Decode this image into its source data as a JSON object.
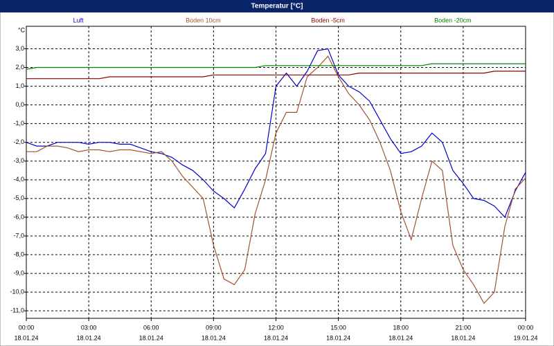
{
  "chart_data": {
    "type": "line",
    "title": "Temperatur [°C]",
    "unit": "°C",
    "x": [
      0,
      0.5,
      1,
      1.5,
      2,
      2.5,
      3,
      3.5,
      4,
      4.5,
      5,
      5.5,
      6,
      6.5,
      7,
      7.5,
      8,
      8.5,
      9,
      9.5,
      10,
      10.5,
      11,
      11.5,
      12,
      12.5,
      13,
      13.5,
      14,
      14.5,
      15,
      15.5,
      16,
      16.5,
      17,
      17.5,
      18,
      18.5,
      19,
      19.5,
      20,
      20.5,
      21,
      21.5,
      22,
      22.5,
      23,
      23.5,
      24
    ],
    "series": [
      {
        "name": "Luft",
        "color": "#0000cc",
        "values": [
          -2.0,
          -2.2,
          -2.2,
          -2.0,
          -2.0,
          -2.0,
          -2.1,
          -2.0,
          -2.0,
          -2.1,
          -2.1,
          -2.3,
          -2.5,
          -2.6,
          -2.8,
          -3.2,
          -3.5,
          -4.0,
          -4.6,
          -5.0,
          -5.5,
          -4.5,
          -3.4,
          -2.6,
          1.0,
          1.7,
          1.0,
          1.8,
          2.9,
          3.0,
          1.6,
          1.0,
          0.7,
          0.2,
          -0.8,
          -1.8,
          -2.6,
          -2.5,
          -2.2,
          -1.5,
          -2.0,
          -3.5,
          -4.2,
          -5.0,
          -5.1,
          -5.4,
          -6.0,
          -4.6,
          -3.6
        ]
      },
      {
        "name": "Boden 10cm",
        "color": "#a0522d",
        "values": [
          -2.5,
          -2.5,
          -2.2,
          -2.2,
          -2.3,
          -2.5,
          -2.4,
          -2.4,
          -2.5,
          -2.4,
          -2.4,
          -2.5,
          -2.6,
          -2.5,
          -3.0,
          -3.8,
          -4.4,
          -5.0,
          -7.5,
          -9.3,
          -9.6,
          -8.8,
          -5.8,
          -4.0,
          -1.5,
          -0.4,
          -0.4,
          1.5,
          2.0,
          2.6,
          1.5,
          0.6,
          0.0,
          -0.8,
          -2.0,
          -3.5,
          -5.7,
          -7.2,
          -5.0,
          -3.0,
          -3.5,
          -7.5,
          -8.8,
          -9.6,
          -10.6,
          -10.0,
          -6.5,
          -4.5,
          -3.9
        ]
      },
      {
        "name": "Boden -5cm",
        "color": "#8b0000",
        "values": [
          1.4,
          1.4,
          1.4,
          1.4,
          1.4,
          1.4,
          1.4,
          1.4,
          1.5,
          1.5,
          1.5,
          1.5,
          1.5,
          1.5,
          1.5,
          1.5,
          1.5,
          1.5,
          1.6,
          1.6,
          1.6,
          1.6,
          1.6,
          1.6,
          1.6,
          1.6,
          1.6,
          1.6,
          1.6,
          1.6,
          1.6,
          1.6,
          1.7,
          1.7,
          1.7,
          1.7,
          1.7,
          1.7,
          1.7,
          1.7,
          1.7,
          1.7,
          1.7,
          1.7,
          1.7,
          1.8,
          1.8,
          1.8,
          1.8
        ]
      },
      {
        "name": "Boden -20cm",
        "color": "#008000",
        "values": [
          1.9,
          2.0,
          2.0,
          2.0,
          2.0,
          2.0,
          2.0,
          2.0,
          2.0,
          2.0,
          2.0,
          2.0,
          2.0,
          2.0,
          2.0,
          2.0,
          2.0,
          2.0,
          2.0,
          2.0,
          2.0,
          2.0,
          2.0,
          2.1,
          2.1,
          2.1,
          2.1,
          2.1,
          2.1,
          2.1,
          2.1,
          2.1,
          2.1,
          2.1,
          2.1,
          2.1,
          2.1,
          2.1,
          2.1,
          2.2,
          2.2,
          2.2,
          2.2,
          2.2,
          2.2,
          2.2,
          2.2,
          2.2,
          2.2
        ]
      }
    ],
    "xlim": [
      0,
      24
    ],
    "xticks": [
      {
        "value": 0,
        "label": "00:00",
        "date": "18.01.24"
      },
      {
        "value": 3,
        "label": "03:00",
        "date": "18.01.24"
      },
      {
        "value": 6,
        "label": "06:00",
        "date": "18.01.24"
      },
      {
        "value": 9,
        "label": "09:00",
        "date": "18.01.24"
      },
      {
        "value": 12,
        "label": "12:00",
        "date": "18.01.24"
      },
      {
        "value": 15,
        "label": "15:00",
        "date": "18.01.24"
      },
      {
        "value": 18,
        "label": "18:00",
        "date": "18.01.24"
      },
      {
        "value": 21,
        "label": "21:00",
        "date": "18.01.24"
      },
      {
        "value": 24,
        "label": "00:00",
        "date": "19.01.24"
      }
    ],
    "ylim": [
      -11.4,
      4.2
    ],
    "yticks": [
      {
        "value": -11,
        "label": "-11,0"
      },
      {
        "value": -10,
        "label": "-10,0"
      },
      {
        "value": -9,
        "label": "-9,0"
      },
      {
        "value": -8,
        "label": "-8,0"
      },
      {
        "value": -7,
        "label": "-7,0"
      },
      {
        "value": -6,
        "label": "-6,0"
      },
      {
        "value": -5,
        "label": "-5,0"
      },
      {
        "value": -4,
        "label": "-4,0"
      },
      {
        "value": -3,
        "label": "-3,0"
      },
      {
        "value": -2,
        "label": "-2,0"
      },
      {
        "value": -1,
        "label": "-1,0"
      },
      {
        "value": 0,
        "label": "0,0"
      },
      {
        "value": 1,
        "label": "1,0"
      },
      {
        "value": 2,
        "label": "2,0"
      },
      {
        "value": 3,
        "label": "3,0"
      }
    ],
    "grid": true
  }
}
